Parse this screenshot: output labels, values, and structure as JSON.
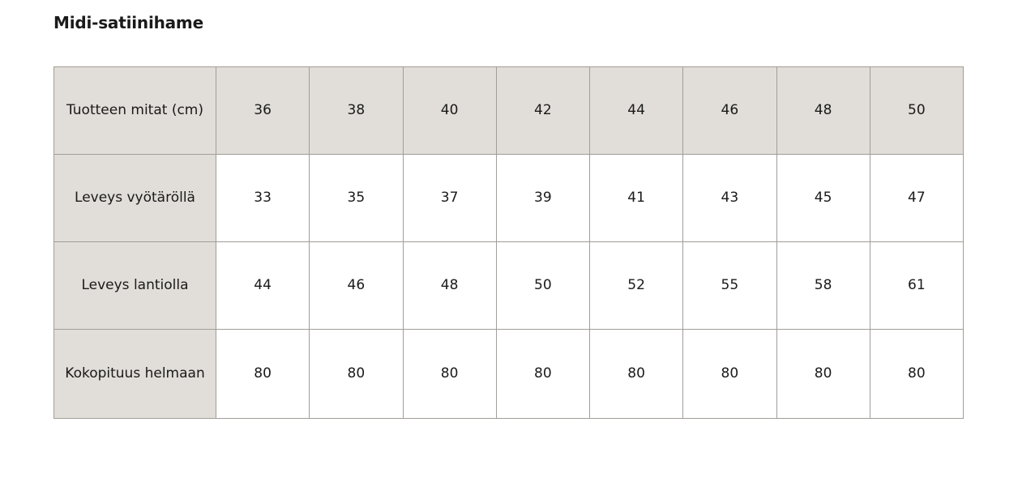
{
  "title": "Midi-satiinihame",
  "table": {
    "header": {
      "label": "Tuotteen mitat (cm)",
      "values": [
        "36",
        "38",
        "40",
        "42",
        "44",
        "46",
        "48",
        "50"
      ]
    },
    "rows": [
      {
        "label": "Leveys vyötäröllä",
        "values": [
          "33",
          "35",
          "37",
          "39",
          "41",
          "43",
          "45",
          "47"
        ]
      },
      {
        "label": "Leveys lantiolla",
        "values": [
          "44",
          "46",
          "48",
          "50",
          "52",
          "55",
          "58",
          "61"
        ]
      },
      {
        "label": "Kokopituus helmaan",
        "values": [
          "80",
          "80",
          "80",
          "80",
          "80",
          "80",
          "80",
          "80"
        ]
      }
    ]
  },
  "colors": {
    "header_bg": "#e1ddd8",
    "border": "#a29d97"
  }
}
